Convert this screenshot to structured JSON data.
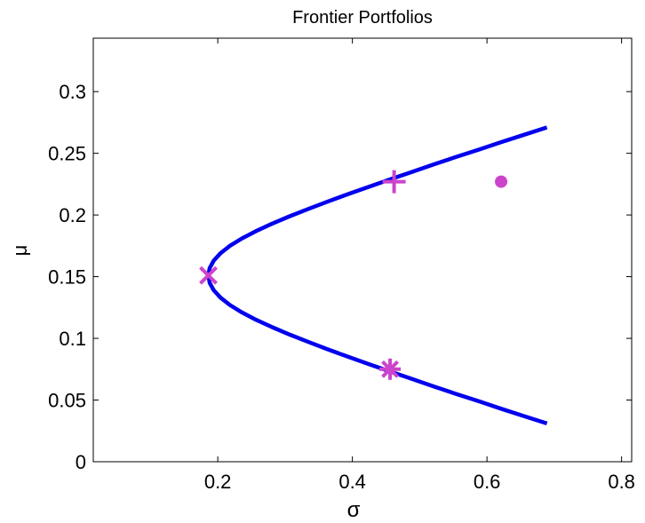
{
  "chart_data": {
    "type": "line",
    "title": "Frontier Portfolios",
    "xlabel": "σ",
    "ylabel": "μ",
    "xlim": [
      0.015,
      0.815
    ],
    "ylim": [
      0,
      0.3433
    ],
    "xticks": [
      0.2,
      0.4,
      0.6,
      0.8
    ],
    "xtick_labels": [
      "0.2",
      "0.4",
      "0.6",
      "0.8"
    ],
    "yticks": [
      0,
      0.05,
      0.1,
      0.15,
      0.2,
      0.25,
      0.3
    ],
    "ytick_labels": [
      "0",
      "0.05",
      "0.1",
      "0.15",
      "0.2",
      "0.25",
      "0.3"
    ],
    "grid": false,
    "series": [
      {
        "kind": "frontier-curve",
        "color": "#0000ee",
        "x": [
          0.689,
          0.655,
          0.621,
          0.588,
          0.554,
          0.521,
          0.489,
          0.457,
          0.425,
          0.394,
          0.364,
          0.335,
          0.307,
          0.281,
          0.257,
          0.236,
          0.218,
          0.204,
          0.194,
          0.188,
          0.186,
          0.188,
          0.194,
          0.204,
          0.218,
          0.236,
          0.257,
          0.281,
          0.307,
          0.335,
          0.364,
          0.394,
          0.425,
          0.457,
          0.489,
          0.521,
          0.554,
          0.588,
          0.621,
          0.655,
          0.689
        ],
        "y": [
          0.031,
          0.037,
          0.043,
          0.049,
          0.055,
          0.061,
          0.067,
          0.073,
          0.079,
          0.085,
          0.091,
          0.097,
          0.103,
          0.109,
          0.115,
          0.121,
          0.127,
          0.133,
          0.139,
          0.145,
          0.151,
          0.157,
          0.163,
          0.169,
          0.175,
          0.181,
          0.187,
          0.193,
          0.199,
          0.205,
          0.211,
          0.217,
          0.223,
          0.229,
          0.235,
          0.241,
          0.247,
          0.253,
          0.259,
          0.265,
          0.271
        ]
      }
    ],
    "markers": [
      {
        "shape": "x",
        "x": 0.186,
        "y": 0.151,
        "color": "#cc44cc"
      },
      {
        "shape": "plus",
        "x": 0.462,
        "y": 0.227,
        "color": "#cc44cc"
      },
      {
        "shape": "asterisk",
        "x": 0.456,
        "y": 0.075,
        "color": "#cc44cc"
      },
      {
        "shape": "dot",
        "x": 0.621,
        "y": 0.227,
        "color": "#cc44cc"
      }
    ]
  }
}
